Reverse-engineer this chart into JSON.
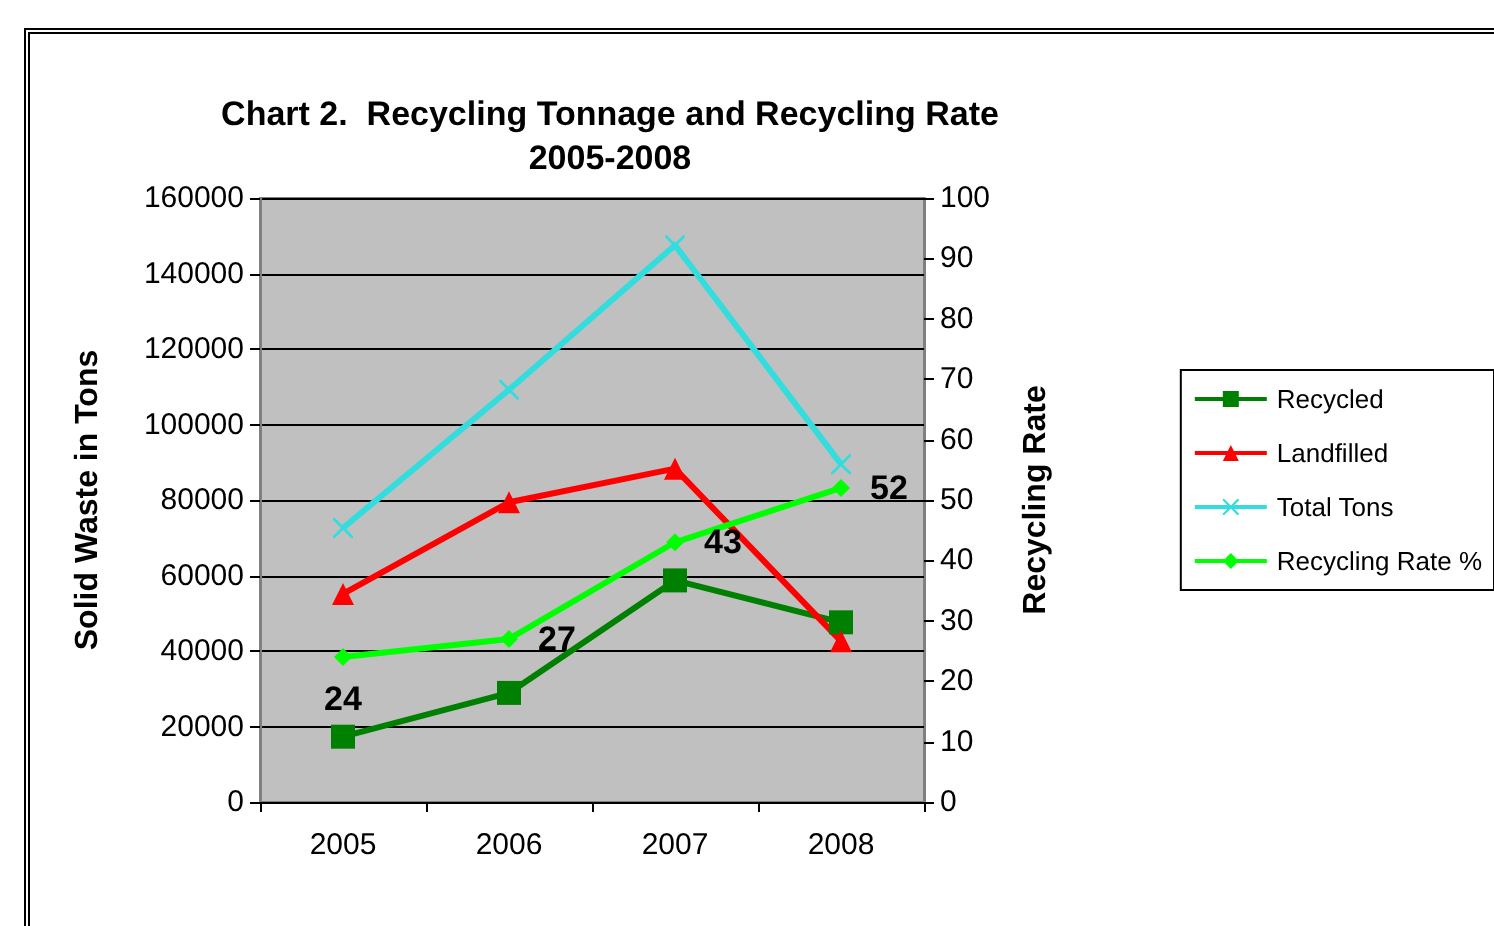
{
  "chart_data": {
    "type": "line",
    "title": "Chart 2.  Recycling Tonnage and Recycling Rate\n2005-2008",
    "ylabel": "Solid Waste in Tons",
    "y2label": "Recycling Rate",
    "categories": [
      "2005",
      "2006",
      "2007",
      "2008"
    ],
    "series": [
      {
        "name": "Recycled",
        "color": "#008000",
        "marker": "square",
        "values": [
          17300,
          28900,
          58700,
          47600
        ]
      },
      {
        "name": "Landfilled",
        "color": "#ff0000",
        "marker": "triangle",
        "values": [
          55100,
          79400,
          88300,
          42600
        ]
      },
      {
        "name": "Total Tons",
        "color": "#33dddd",
        "marker": "cross",
        "values": [
          72600,
          109200,
          147500,
          89500
        ]
      },
      {
        "name": "Recycling Rate %",
        "color": "#00ff00",
        "marker": "diamond",
        "axis": "y2",
        "values": [
          24,
          27,
          43,
          52
        ],
        "value_labels": [
          "24",
          "27",
          "43",
          "52"
        ]
      }
    ],
    "ylim": [
      0,
      160000
    ],
    "yticks": [
      0,
      20000,
      40000,
      60000,
      80000,
      100000,
      120000,
      140000,
      160000
    ],
    "y2lim": [
      0,
      100
    ],
    "y2ticks": [
      0,
      10,
      20,
      30,
      40,
      50,
      60,
      70,
      80,
      90,
      100
    ],
    "grid": "y",
    "legend": "right"
  }
}
